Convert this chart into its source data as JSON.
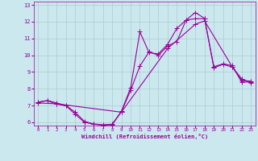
{
  "xlabel": "Windchill (Refroidissement éolien,°C)",
  "bg_color": "#cce8ef",
  "line_color": "#990099",
  "grid_color": "#aacccc",
  "xlim": [
    -0.5,
    23.5
  ],
  "ylim": [
    5.8,
    13.2
  ],
  "xticks": [
    0,
    1,
    2,
    3,
    4,
    5,
    6,
    7,
    8,
    9,
    10,
    11,
    12,
    13,
    14,
    15,
    16,
    17,
    18,
    19,
    20,
    21,
    22,
    23
  ],
  "yticks": [
    6,
    7,
    8,
    9,
    10,
    11,
    12,
    13
  ],
  "series1_x": [
    0,
    1,
    2,
    3,
    4,
    5,
    6,
    7,
    8,
    9,
    10,
    11,
    12,
    13,
    14,
    15,
    16,
    17,
    18,
    19,
    20,
    21,
    22,
    23
  ],
  "series1_y": [
    7.2,
    7.3,
    7.15,
    7.0,
    6.6,
    6.05,
    5.9,
    5.85,
    5.88,
    6.65,
    8.05,
    11.4,
    10.15,
    10.08,
    10.65,
    11.6,
    12.1,
    12.55,
    12.2,
    9.25,
    9.45,
    9.3,
    8.5,
    8.45
  ],
  "series2_x": [
    0,
    1,
    2,
    3,
    4,
    5,
    6,
    7,
    8,
    9,
    10,
    11,
    12,
    13,
    14,
    15,
    16,
    17,
    18,
    19,
    20,
    21,
    22,
    23
  ],
  "series2_y": [
    7.2,
    7.28,
    7.08,
    6.98,
    6.48,
    6.0,
    5.88,
    5.82,
    5.85,
    6.62,
    7.9,
    9.35,
    10.2,
    10.0,
    10.55,
    10.82,
    12.1,
    12.18,
    12.18,
    9.32,
    9.48,
    9.38,
    8.4,
    8.4
  ],
  "series3_x": [
    0,
    2,
    9,
    14,
    17,
    18,
    21,
    22,
    23
  ],
  "series3_y": [
    7.15,
    7.1,
    6.6,
    10.4,
    11.85,
    12.05,
    9.3,
    8.6,
    8.35
  ],
  "marker": "+",
  "markersize": 4,
  "linewidth": 0.8
}
